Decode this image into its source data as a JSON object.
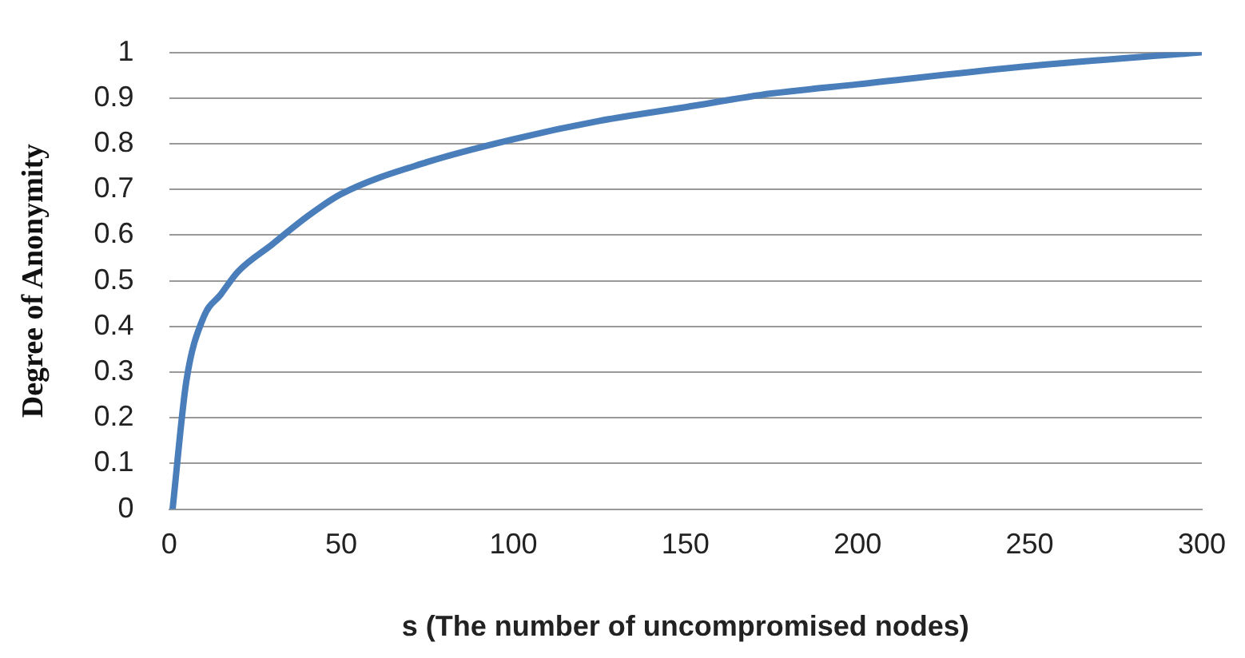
{
  "chart_data": {
    "type": "line",
    "xlabel": "s (The number of uncompromised nodes)",
    "ylabel": "Degree of Anonymity",
    "x": [
      1,
      5,
      10,
      15,
      20,
      30,
      40,
      50,
      75,
      100,
      125,
      150,
      175,
      200,
      250,
      300
    ],
    "series": [
      {
        "color": "#4a7ebb",
        "values": [
          0,
          0.28,
          0.42,
          0.47,
          0.52,
          0.58,
          0.64,
          0.69,
          0.76,
          0.81,
          0.85,
          0.88,
          0.91,
          0.93,
          0.97,
          1
        ]
      }
    ],
    "xlim": [
      0,
      300
    ],
    "xticks": [
      0,
      50,
      100,
      150,
      200,
      250,
      300
    ],
    "ylim": [
      0,
      1
    ],
    "yticks": [
      0,
      0.1,
      0.2,
      0.3,
      0.4,
      0.5,
      0.6,
      0.7,
      0.8,
      0.9,
      1
    ],
    "grid": "y",
    "legend": false,
    "marker": "none",
    "line_style": "solid"
  }
}
